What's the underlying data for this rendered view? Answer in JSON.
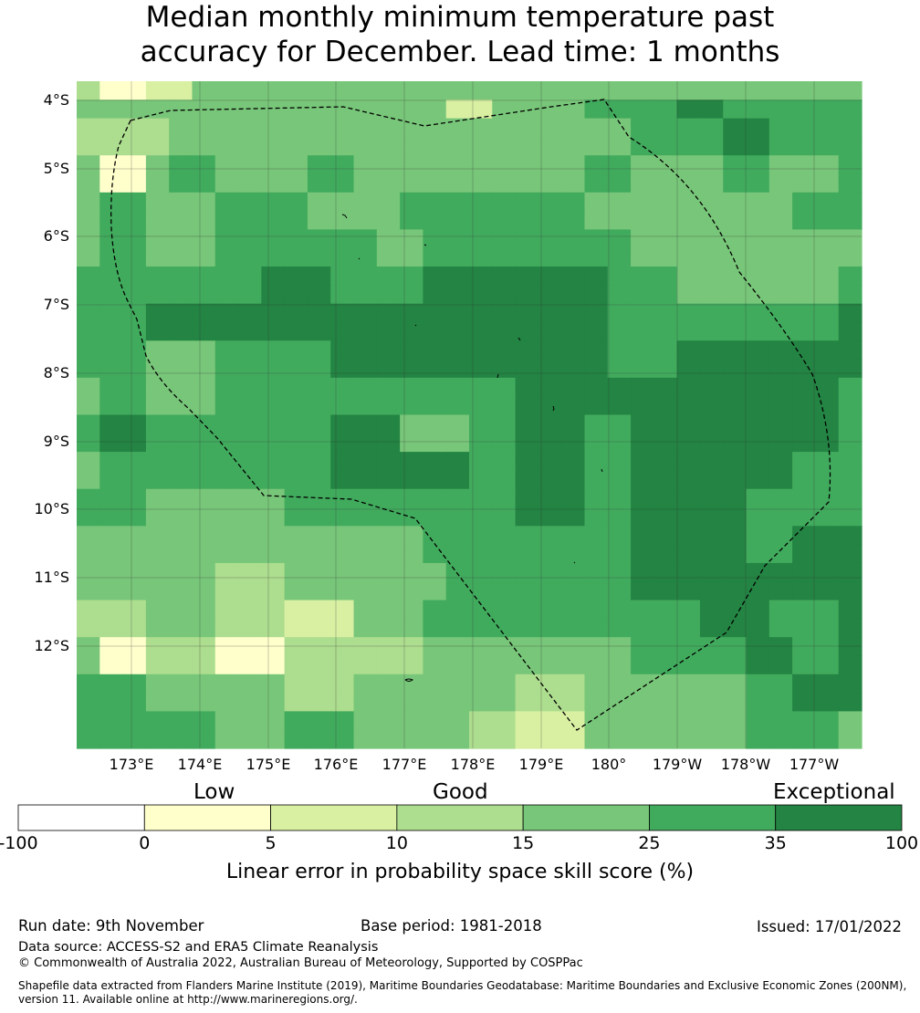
{
  "title": {
    "line1": "Median monthly minimum temperature past",
    "line2": "accuracy for December. Lead time: 1 months"
  },
  "map": {
    "lat_labels": [
      "4°S",
      "5°S",
      "6°S",
      "7°S",
      "8°S",
      "9°S",
      "10°S",
      "11°S",
      "12°S"
    ],
    "lon_labels": [
      "173°E",
      "174°E",
      "175°E",
      "176°E",
      "177°E",
      "178°E",
      "179°E",
      "180°",
      "179°W",
      "178°W",
      "177°W"
    ],
    "category_grid": [
      [
        3,
        1,
        1,
        2,
        2,
        4,
        4,
        4,
        4,
        4,
        4,
        4,
        4,
        4,
        4,
        4,
        4,
        4,
        4,
        4,
        4,
        4,
        4,
        4,
        4,
        4,
        4,
        4,
        4,
        4,
        4,
        4,
        4,
        4
      ],
      [
        4,
        4,
        4,
        4,
        4,
        4,
        4,
        4,
        4,
        4,
        4,
        4,
        4,
        4,
        4,
        4,
        2,
        2,
        4,
        4,
        4,
        4,
        5,
        5,
        5,
        5,
        6,
        6,
        5,
        5,
        5,
        5,
        5,
        5
      ],
      [
        3,
        3,
        3,
        3,
        4,
        4,
        4,
        4,
        4,
        4,
        4,
        4,
        4,
        4,
        4,
        4,
        4,
        4,
        4,
        4,
        4,
        4,
        4,
        4,
        5,
        5,
        5,
        5,
        6,
        6,
        5,
        5,
        5,
        5
      ],
      [
        3,
        3,
        3,
        3,
        4,
        4,
        4,
        4,
        4,
        4,
        4,
        4,
        4,
        4,
        4,
        4,
        4,
        4,
        4,
        4,
        4,
        4,
        4,
        4,
        5,
        5,
        5,
        5,
        6,
        6,
        5,
        5,
        5,
        5
      ],
      [
        4,
        1,
        1,
        4,
        5,
        5,
        4,
        4,
        4,
        4,
        5,
        5,
        4,
        4,
        4,
        4,
        4,
        4,
        4,
        4,
        4,
        4,
        5,
        5,
        4,
        4,
        4,
        4,
        5,
        5,
        4,
        4,
        4,
        5
      ],
      [
        4,
        1,
        1,
        4,
        5,
        5,
        4,
        4,
        4,
        4,
        5,
        5,
        4,
        4,
        4,
        4,
        4,
        4,
        4,
        4,
        4,
        4,
        5,
        5,
        4,
        4,
        4,
        4,
        5,
        5,
        4,
        4,
        4,
        5
      ],
      [
        4,
        5,
        5,
        4,
        4,
        4,
        5,
        5,
        5,
        5,
        4,
        4,
        4,
        4,
        5,
        5,
        5,
        5,
        5,
        5,
        5,
        5,
        4,
        4,
        4,
        4,
        4,
        4,
        4,
        4,
        4,
        5,
        5,
        5
      ],
      [
        4,
        5,
        5,
        4,
        4,
        4,
        5,
        5,
        5,
        5,
        4,
        4,
        4,
        4,
        5,
        5,
        5,
        5,
        5,
        5,
        5,
        5,
        4,
        4,
        4,
        4,
        4,
        4,
        4,
        4,
        4,
        5,
        5,
        5
      ],
      [
        4,
        5,
        5,
        4,
        4,
        4,
        5,
        5,
        5,
        5,
        5,
        5,
        5,
        4,
        4,
        5,
        5,
        5,
        5,
        5,
        5,
        5,
        5,
        5,
        4,
        4,
        4,
        4,
        4,
        4,
        4,
        4,
        4,
        4
      ],
      [
        4,
        5,
        5,
        4,
        4,
        4,
        5,
        5,
        5,
        5,
        5,
        5,
        5,
        4,
        4,
        5,
        5,
        5,
        5,
        5,
        5,
        5,
        5,
        5,
        4,
        4,
        4,
        4,
        4,
        4,
        4,
        4,
        4,
        4
      ],
      [
        5,
        5,
        5,
        5,
        5,
        5,
        5,
        5,
        6,
        6,
        6,
        5,
        5,
        5,
        5,
        6,
        6,
        6,
        6,
        6,
        6,
        6,
        6,
        5,
        5,
        5,
        4,
        4,
        4,
        4,
        4,
        4,
        4,
        5
      ],
      [
        5,
        5,
        5,
        5,
        5,
        5,
        5,
        5,
        6,
        6,
        6,
        5,
        5,
        5,
        5,
        6,
        6,
        6,
        6,
        6,
        6,
        6,
        6,
        5,
        5,
        5,
        4,
        4,
        4,
        4,
        4,
        4,
        4,
        5
      ],
      [
        5,
        5,
        5,
        6,
        6,
        6,
        6,
        6,
        6,
        6,
        6,
        6,
        6,
        6,
        6,
        6,
        6,
        6,
        6,
        6,
        6,
        6,
        6,
        5,
        5,
        5,
        5,
        5,
        5,
        5,
        5,
        5,
        5,
        6
      ],
      [
        5,
        5,
        5,
        6,
        6,
        6,
        6,
        6,
        6,
        6,
        6,
        6,
        6,
        6,
        6,
        6,
        6,
        6,
        6,
        6,
        6,
        6,
        6,
        5,
        5,
        5,
        5,
        5,
        5,
        5,
        5,
        5,
        5,
        6
      ],
      [
        5,
        5,
        5,
        4,
        4,
        4,
        5,
        5,
        5,
        5,
        5,
        6,
        6,
        6,
        6,
        6,
        6,
        6,
        6,
        6,
        6,
        6,
        6,
        5,
        5,
        5,
        6,
        6,
        6,
        6,
        6,
        6,
        6,
        6
      ],
      [
        5,
        5,
        5,
        4,
        4,
        4,
        5,
        5,
        5,
        5,
        5,
        6,
        6,
        6,
        6,
        6,
        6,
        6,
        6,
        6,
        6,
        6,
        6,
        5,
        5,
        5,
        6,
        6,
        6,
        6,
        6,
        6,
        6,
        6
      ],
      [
        4,
        5,
        5,
        4,
        4,
        4,
        5,
        5,
        5,
        5,
        5,
        5,
        5,
        5,
        5,
        5,
        5,
        5,
        5,
        6,
        6,
        6,
        6,
        6,
        6,
        6,
        6,
        6,
        6,
        6,
        6,
        6,
        6,
        5
      ],
      [
        4,
        5,
        5,
        4,
        4,
        4,
        5,
        5,
        5,
        5,
        5,
        5,
        5,
        5,
        5,
        5,
        5,
        5,
        5,
        6,
        6,
        6,
        6,
        6,
        6,
        6,
        6,
        6,
        6,
        6,
        6,
        6,
        6,
        5
      ],
      [
        5,
        6,
        6,
        5,
        5,
        5,
        5,
        5,
        5,
        5,
        5,
        6,
        6,
        6,
        4,
        4,
        4,
        5,
        5,
        6,
        6,
        6,
        5,
        5,
        6,
        6,
        6,
        6,
        6,
        6,
        6,
        6,
        6,
        5
      ],
      [
        5,
        6,
        6,
        5,
        5,
        5,
        5,
        5,
        5,
        5,
        5,
        6,
        6,
        6,
        4,
        4,
        4,
        5,
        5,
        6,
        6,
        6,
        5,
        5,
        6,
        6,
        6,
        6,
        6,
        6,
        6,
        6,
        6,
        5
      ],
      [
        4,
        5,
        5,
        5,
        5,
        5,
        5,
        5,
        5,
        5,
        5,
        6,
        6,
        6,
        6,
        6,
        6,
        5,
        5,
        6,
        6,
        6,
        5,
        5,
        6,
        6,
        6,
        6,
        6,
        6,
        6,
        5,
        5,
        5
      ],
      [
        4,
        5,
        5,
        5,
        5,
        5,
        5,
        5,
        5,
        5,
        5,
        6,
        6,
        6,
        6,
        6,
        6,
        5,
        5,
        6,
        6,
        6,
        5,
        5,
        6,
        6,
        6,
        6,
        6,
        6,
        6,
        5,
        5,
        5
      ],
      [
        5,
        5,
        5,
        4,
        4,
        4,
        4,
        4,
        4,
        5,
        5,
        5,
        5,
        5,
        5,
        5,
        5,
        5,
        5,
        6,
        6,
        6,
        5,
        5,
        6,
        6,
        6,
        6,
        6,
        5,
        5,
        5,
        5,
        5
      ],
      [
        5,
        5,
        5,
        4,
        4,
        4,
        4,
        4,
        4,
        5,
        5,
        5,
        5,
        5,
        5,
        5,
        5,
        5,
        5,
        6,
        6,
        6,
        5,
        5,
        6,
        6,
        6,
        6,
        6,
        5,
        5,
        5,
        5,
        5
      ],
      [
        4,
        4,
        4,
        4,
        4,
        4,
        4,
        4,
        4,
        4,
        4,
        4,
        4,
        4,
        4,
        5,
        5,
        5,
        5,
        5,
        5,
        5,
        5,
        5,
        6,
        6,
        6,
        6,
        6,
        5,
        5,
        6,
        6,
        6
      ],
      [
        4,
        4,
        4,
        4,
        4,
        4,
        4,
        4,
        4,
        4,
        4,
        4,
        4,
        4,
        4,
        5,
        5,
        5,
        5,
        5,
        5,
        5,
        5,
        5,
        6,
        6,
        6,
        6,
        6,
        5,
        5,
        6,
        6,
        6
      ],
      [
        4,
        4,
        4,
        4,
        4,
        4,
        3,
        3,
        3,
        4,
        4,
        4,
        4,
        4,
        4,
        4,
        5,
        5,
        5,
        5,
        5,
        5,
        5,
        5,
        6,
        6,
        6,
        6,
        6,
        6,
        6,
        6,
        6,
        6
      ],
      [
        4,
        4,
        4,
        4,
        4,
        4,
        3,
        3,
        3,
        4,
        4,
        4,
        4,
        4,
        4,
        4,
        5,
        5,
        5,
        5,
        5,
        5,
        5,
        5,
        6,
        6,
        6,
        6,
        6,
        6,
        6,
        6,
        6,
        6
      ],
      [
        3,
        3,
        3,
        4,
        4,
        4,
        3,
        3,
        3,
        2,
        2,
        2,
        4,
        4,
        4,
        5,
        5,
        5,
        5,
        5,
        5,
        5,
        5,
        5,
        5,
        5,
        5,
        6,
        6,
        6,
        5,
        5,
        5,
        6
      ],
      [
        3,
        3,
        3,
        4,
        4,
        4,
        3,
        3,
        3,
        2,
        2,
        2,
        4,
        4,
        4,
        5,
        5,
        5,
        5,
        5,
        5,
        5,
        5,
        5,
        5,
        5,
        5,
        6,
        6,
        6,
        5,
        5,
        5,
        6
      ],
      [
        4,
        1,
        1,
        3,
        3,
        3,
        1,
        1,
        1,
        3,
        3,
        3,
        3,
        3,
        3,
        4,
        4,
        4,
        4,
        4,
        4,
        4,
        4,
        4,
        5,
        5,
        5,
        5,
        5,
        6,
        6,
        5,
        5,
        6
      ],
      [
        4,
        1,
        1,
        3,
        3,
        3,
        1,
        1,
        1,
        3,
        3,
        3,
        3,
        3,
        3,
        4,
        4,
        4,
        4,
        4,
        4,
        4,
        4,
        4,
        5,
        5,
        5,
        5,
        5,
        6,
        6,
        5,
        5,
        6
      ],
      [
        5,
        5,
        5,
        4,
        4,
        4,
        4,
        4,
        4,
        3,
        3,
        3,
        4,
        4,
        4,
        4,
        4,
        4,
        4,
        3,
        3,
        3,
        4,
        4,
        4,
        4,
        4,
        4,
        4,
        5,
        5,
        6,
        6,
        6
      ],
      [
        5,
        5,
        5,
        4,
        4,
        4,
        4,
        4,
        4,
        3,
        3,
        3,
        4,
        4,
        4,
        4,
        4,
        4,
        4,
        3,
        3,
        3,
        4,
        4,
        4,
        4,
        4,
        4,
        4,
        5,
        5,
        6,
        6,
        6
      ],
      [
        5,
        5,
        5,
        5,
        5,
        5,
        4,
        4,
        4,
        5,
        5,
        5,
        4,
        4,
        4,
        4,
        4,
        3,
        3,
        2,
        2,
        2,
        4,
        4,
        4,
        4,
        4,
        4,
        4,
        5,
        5,
        5,
        5,
        4
      ],
      [
        5,
        5,
        5,
        5,
        5,
        5,
        4,
        4,
        4,
        5,
        5,
        5,
        4,
        4,
        4,
        4,
        4,
        3,
        3,
        2,
        2,
        2,
        4,
        4,
        4,
        4,
        4,
        4,
        4,
        5,
        5,
        5,
        5,
        4
      ]
    ]
  },
  "colorbar": {
    "categories": [
      "Low",
      "Good",
      "Exceptional"
    ],
    "ticks": [
      "-100",
      "0",
      "5",
      "10",
      "15",
      "25",
      "35",
      "100"
    ],
    "colors": [
      "#ffffff",
      "#ffffcc",
      "#d9f0a3",
      "#addd8e",
      "#78c679",
      "#41ab5d",
      "#238443"
    ],
    "label": "Linear error in probability space skill score (%)"
  },
  "footer": {
    "run_date": "Run date: 9th November",
    "base_period": "Base period: 1981-2018",
    "issued": "Issued: 17/01/2022",
    "data_source": "Data source: ACCESS-S2 and ERA5 Climate Reanalysis",
    "copyright": "© Commonwealth of Australia 2022, Australian Bureau of Meteorology, Supported by COSPPac",
    "shapefile_line1": "Shapefile data extracted from Flanders Marine Institute (2019), Maritime Boundaries Geodatabase: Maritime Boundaries and Exclusive Economic Zones (200NM),",
    "shapefile_line2": "version 11. Available online at http://www.marineregions.org/."
  }
}
